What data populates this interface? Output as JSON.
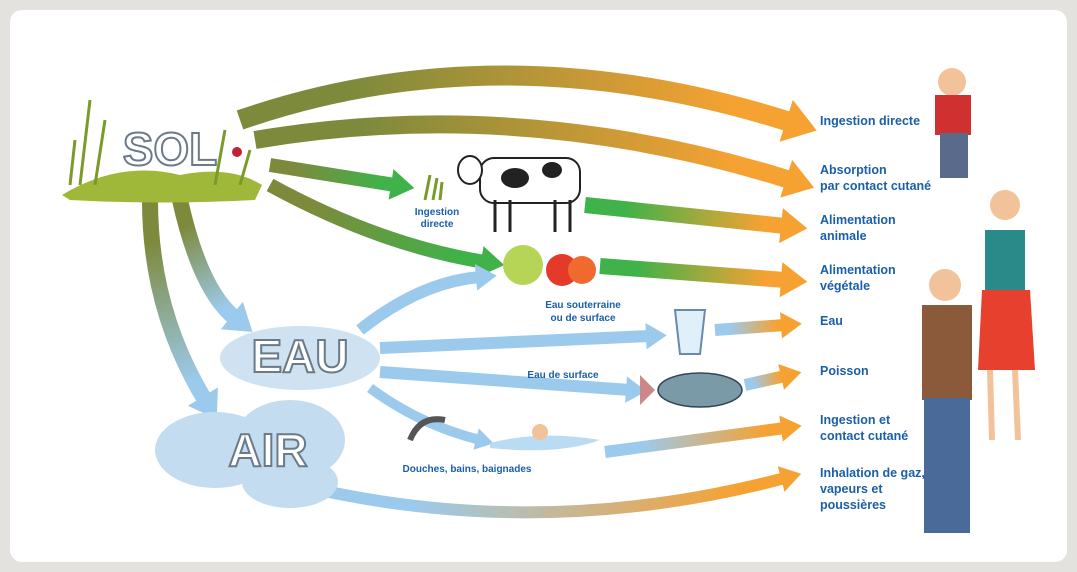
{
  "sources": {
    "sol": "SOL",
    "eau": "EAU",
    "air": "AIR"
  },
  "intermediate": {
    "cow_ingestion": [
      "Ingestion",
      "directe"
    ],
    "groundwater": [
      "Eau souterraine",
      "ou de surface"
    ],
    "surface_water": "Eau de surface",
    "bathing": "Douches, bains, baignades"
  },
  "outcomes": [
    [
      "Ingestion directe"
    ],
    [
      "Absorption",
      "par contact cutané"
    ],
    [
      "Alimentation",
      "animale"
    ],
    [
      "Alimentation",
      "végétale"
    ],
    [
      "Eau"
    ],
    [
      "Poisson"
    ],
    [
      "Ingestion et",
      "contact cutané"
    ],
    [
      "Inhalation de gaz,",
      "vapeurs et",
      "poussières"
    ]
  ]
}
